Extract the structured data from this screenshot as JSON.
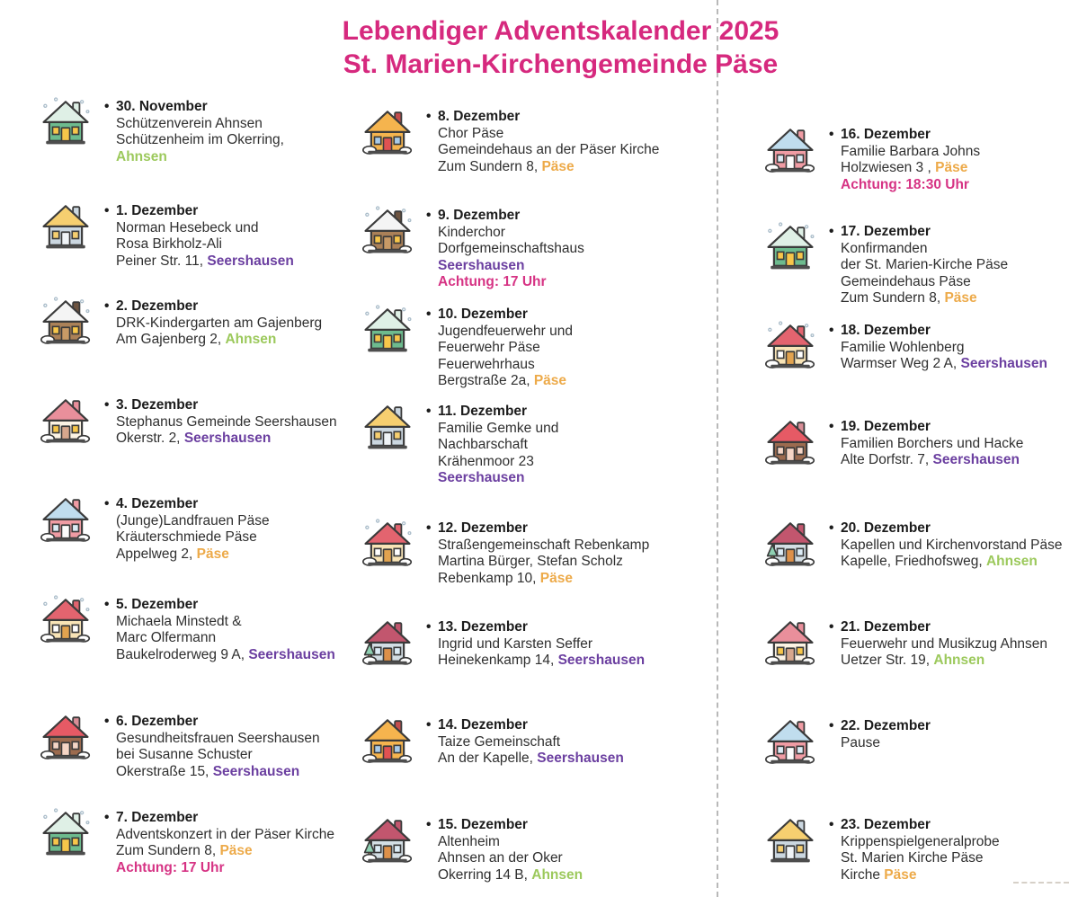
{
  "title": {
    "line1": "Lebendiger Adventskalender 2025",
    "line2": "St. Marien-Kirchengemeinde Päse"
  },
  "bullet": "•",
  "colors": {
    "title_pink": "#d6297e",
    "achtung_pink": "#d63384",
    "ahnsen_green": "#9cc95c",
    "seershausen_purple": "#6b3fa0",
    "paese_orange": "#edaa49",
    "body_text": "#2f2f2f"
  },
  "columns": [
    {
      "entries": [
        {
          "date": "30. November",
          "icon": "house-green-snow-icon",
          "lines": [
            [
              {
                "text": "Schützenverein Ahnsen"
              }
            ],
            [
              {
                "text": "Schützenheim im Okerring,"
              }
            ],
            [
              {
                "text": "Ahnsen",
                "style": "ahnsen"
              }
            ]
          ]
        },
        {
          "date": "1. Dezember",
          "icon": "house-bluegray-yellow-icon",
          "lines": [
            [
              {
                "text": "Norman Hesebeck und"
              }
            ],
            [
              {
                "text": "Rosa Birkholz-Ali"
              }
            ],
            [
              {
                "text": "Peiner Str. 11, "
              },
              {
                "text": "Seershausen",
                "style": "seershausen"
              }
            ]
          ]
        },
        {
          "date": "2. Dezember",
          "icon": "house-log-cabin-icon",
          "lines": [
            [
              {
                "text": "DRK-Kindergarten am Gajenberg"
              }
            ],
            [
              {
                "text": "Am Gajenberg 2, "
              },
              {
                "text": "Ahnsen",
                "style": "ahnsen"
              }
            ]
          ]
        },
        {
          "date": "3. Dezember",
          "icon": "house-white-pink-icon",
          "lines": [
            [
              {
                "text": "Stephanus Gemeinde Seershausen"
              }
            ],
            [
              {
                "text": "Okerstr. 2, "
              },
              {
                "text": "Seershausen",
                "style": "seershausen"
              }
            ]
          ]
        },
        {
          "date": "4. Dezember",
          "icon": "house-pink-blue-icon",
          "lines": [
            [
              {
                "text": "(Junge)Landfrauen Päse"
              }
            ],
            [
              {
                "text": "Kräuterschmiede Päse"
              }
            ],
            [
              {
                "text": "Appelweg 2, "
              },
              {
                "text": "Päse",
                "style": "paese"
              }
            ]
          ]
        },
        {
          "date": "5. Dezember",
          "icon": "house-cream-red-icon",
          "lines": [
            [
              {
                "text": "Michaela Minstedt &"
              }
            ],
            [
              {
                "text": "Marc Olfermann"
              }
            ],
            [
              {
                "text": "Baukelroderweg 9 A, "
              },
              {
                "text": "Seershausen",
                "style": "seershausen"
              }
            ]
          ]
        },
        {
          "date": "6. Dezember",
          "icon": "house-brown-red-icon",
          "lines": [
            [
              {
                "text": "Gesundheitsfrauen Seershausen"
              }
            ],
            [
              {
                "text": "bei Susanne Schuster"
              }
            ],
            [
              {
                "text": "Okerstraße 15, "
              },
              {
                "text": "Seershausen",
                "style": "seershausen"
              }
            ]
          ]
        },
        {
          "date": "7. Dezember",
          "icon": "house-green-snow-icon",
          "lines": [
            [
              {
                "text": "Adventskonzert in der Päser Kirche"
              }
            ],
            [
              {
                "text": "Zum Sundern 8, "
              },
              {
                "text": "Päse",
                "style": "paese"
              }
            ],
            [
              {
                "text": "Achtung: 17 Uhr",
                "style": "achtung"
              }
            ]
          ]
        }
      ]
    },
    {
      "entries": [
        {
          "date": "8. Dezember",
          "icon": "house-orange-red-icon",
          "lines": [
            [
              {
                "text": "Chor Päse"
              }
            ],
            [
              {
                "text": "Gemeindehaus an der Päser Kirche"
              }
            ],
            [
              {
                "text": "Zum Sundern 8, "
              },
              {
                "text": "Päse",
                "style": "paese"
              }
            ]
          ]
        },
        {
          "date": "9. Dezember",
          "icon": "house-log-cabin-icon",
          "lines": [
            [
              {
                "text": "Kinderchor"
              }
            ],
            [
              {
                "text": "Dorfgemeinschaftshaus"
              }
            ],
            [
              {
                "text": "Seershausen",
                "style": "seershausen"
              }
            ],
            [
              {
                "text": "Achtung: 17 Uhr",
                "style": "achtung"
              }
            ]
          ]
        },
        {
          "date": "10. Dezember",
          "icon": "house-green-snow-icon",
          "lines": [
            [
              {
                "text": "Jugendfeuerwehr und"
              }
            ],
            [
              {
                "text": "Feuerwehr Päse"
              }
            ],
            [
              {
                "text": "Feuerwehrhaus"
              }
            ],
            [
              {
                "text": "Bergstraße 2a, "
              },
              {
                "text": "Päse",
                "style": "paese"
              }
            ]
          ]
        },
        {
          "date": "11. Dezember",
          "icon": "house-bluegray-yellow-icon",
          "lines": [
            [
              {
                "text": "Familie Gemke und"
              }
            ],
            [
              {
                "text": "Nachbarschaft"
              }
            ],
            [
              {
                "text": "Krähenmoor 23"
              }
            ],
            [
              {
                "text": "Seershausen",
                "style": "seershausen"
              }
            ]
          ]
        },
        {
          "date": "12. Dezember",
          "icon": "house-cream-red-icon",
          "lines": [
            [
              {
                "text": "Straßengemeinschaft Rebenkamp"
              }
            ],
            [
              {
                "text": "Martina Bürger, Stefan Scholz"
              }
            ],
            [
              {
                "text": "Rebenkamp 10, "
              },
              {
                "text": "Päse",
                "style": "paese"
              }
            ]
          ]
        },
        {
          "date": "13. Dezember",
          "icon": "house-gray-tree-icon",
          "lines": [
            [
              {
                "text": "Ingrid und Karsten Seffer"
              }
            ],
            [
              {
                "text": "Heinekenkamp 14, "
              },
              {
                "text": "Seershausen",
                "style": "seershausen"
              }
            ]
          ]
        },
        {
          "date": "14. Dezember",
          "icon": "house-orange-red-icon",
          "lines": [
            [
              {
                "text": "Taize Gemeinschaft"
              }
            ],
            [
              {
                "text": "An der Kapelle, "
              },
              {
                "text": "Seershausen",
                "style": "seershausen"
              }
            ]
          ]
        },
        {
          "date": "15. Dezember",
          "icon": "house-gray-tree-icon",
          "lines": [
            [
              {
                "text": "Altenheim"
              }
            ],
            [
              {
                "text": "Ahnsen an der Oker"
              }
            ],
            [
              {
                "text": "Okerring 14 B, "
              },
              {
                "text": "Ahnsen",
                "style": "ahnsen"
              }
            ]
          ]
        }
      ]
    },
    {
      "entries": [
        {
          "date": "16. Dezember",
          "icon": "house-pink-blue-icon",
          "lines": [
            [
              {
                "text": "Familie Barbara Johns"
              }
            ],
            [
              {
                "text": "Holzwiesen 3 , "
              },
              {
                "text": "Päse",
                "style": "paese"
              }
            ],
            [
              {
                "text": "Achtung: 18:30 Uhr",
                "style": "achtung"
              }
            ]
          ]
        },
        {
          "date": "17. Dezember",
          "icon": "house-green-snow-icon",
          "lines": [
            [
              {
                "text": "Konfirmanden"
              }
            ],
            [
              {
                "text": "der St. Marien-Kirche Päse"
              }
            ],
            [
              {
                "text": "Gemeindehaus Päse"
              }
            ],
            [
              {
                "text": "Zum Sundern 8, "
              },
              {
                "text": "Päse",
                "style": "paese"
              }
            ]
          ]
        },
        {
          "date": "18. Dezember",
          "icon": "house-cream-red-icon",
          "lines": [
            [
              {
                "text": "Familie Wohlenberg"
              }
            ],
            [
              {
                "text": "Warmser Weg 2 A, "
              },
              {
                "text": "Seershausen",
                "style": "seershausen"
              }
            ]
          ]
        },
        {
          "date": "19. Dezember",
          "icon": "house-brown-red-icon",
          "lines": [
            [
              {
                "text": "Familien Borchers und Hacke"
              }
            ],
            [
              {
                "text": "Alte Dorfstr. 7, "
              },
              {
                "text": "Seershausen",
                "style": "seershausen"
              }
            ]
          ]
        },
        {
          "date": "20. Dezember",
          "icon": "house-gray-tree-icon",
          "lines": [
            [
              {
                "text": "Kapellen und Kirchenvorstand Päse"
              }
            ],
            [
              {
                "text": "Kapelle, Friedhofsweg, "
              },
              {
                "text": "Ahnsen",
                "style": "ahnsen"
              }
            ]
          ]
        },
        {
          "date": "21. Dezember",
          "icon": "house-white-pink-icon",
          "lines": [
            [
              {
                "text": "Feuerwehr und Musikzug Ahnsen"
              }
            ],
            [
              {
                "text": "Uetzer Str. 19, "
              },
              {
                "text": "Ahnsen",
                "style": "ahnsen"
              }
            ]
          ]
        },
        {
          "date": "22. Dezember",
          "icon": "house-pink-blue-icon",
          "lines": [
            [
              {
                "text": "Pause"
              }
            ]
          ]
        },
        {
          "date": "23. Dezember",
          "icon": "house-bluegray-yellow-icon",
          "lines": [
            [
              {
                "text": "Krippenspielgeneralprobe"
              }
            ],
            [
              {
                "text": "St. Marien Kirche Päse"
              }
            ],
            [
              {
                "text": "Kirche "
              },
              {
                "text": "Päse",
                "style": "paese"
              }
            ]
          ]
        }
      ]
    }
  ]
}
